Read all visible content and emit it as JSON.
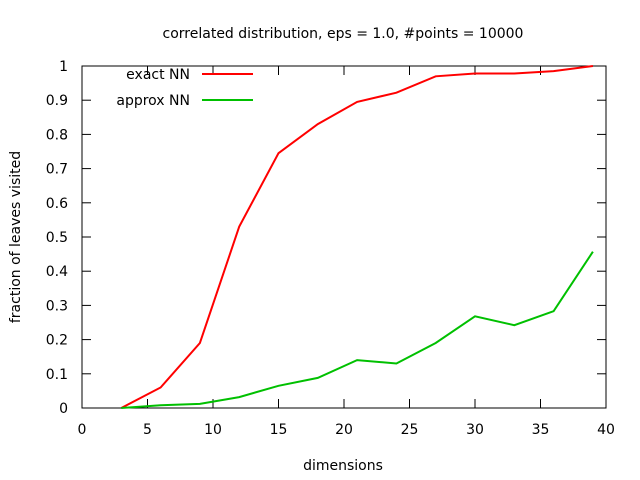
{
  "chart_data": {
    "type": "line",
    "title": "correlated distribution, eps = 1.0, #points = 10000",
    "xlabel": "dimensions",
    "ylabel": "fraction of leaves visited",
    "xlim": [
      0,
      40
    ],
    "ylim": [
      0,
      1
    ],
    "xticks": [
      0,
      5,
      10,
      15,
      20,
      25,
      30,
      35,
      40
    ],
    "yticks": [
      0,
      0.1,
      0.2,
      0.3,
      0.4,
      0.5,
      0.6,
      0.7,
      0.8,
      0.9,
      1
    ],
    "xtick_labels": [
      "0",
      "5",
      "10",
      "15",
      "20",
      "25",
      "30",
      "35",
      "40"
    ],
    "ytick_labels": [
      "0",
      "0.1",
      "0.2",
      "0.3",
      "0.4",
      "0.5",
      "0.6",
      "0.7",
      "0.8",
      "0.9",
      "1"
    ],
    "grid": false,
    "legend_position": "top-left",
    "series": [
      {
        "name": "exact NN",
        "color": "#ff0000",
        "x": [
          3,
          6,
          9,
          12,
          15,
          18,
          21,
          24,
          27,
          30,
          33,
          36,
          39
        ],
        "y": [
          0.0,
          0.06,
          0.19,
          0.53,
          0.745,
          0.83,
          0.895,
          0.922,
          0.97,
          0.978,
          0.978,
          0.985,
          1.0
        ]
      },
      {
        "name": "approx NN",
        "color": "#00c000",
        "x": [
          3,
          6,
          9,
          12,
          15,
          18,
          21,
          24,
          27,
          30,
          33,
          36,
          39
        ],
        "y": [
          0.0,
          0.008,
          0.012,
          0.032,
          0.065,
          0.088,
          0.14,
          0.13,
          0.19,
          0.268,
          0.242,
          0.283,
          0.457
        ]
      }
    ]
  }
}
